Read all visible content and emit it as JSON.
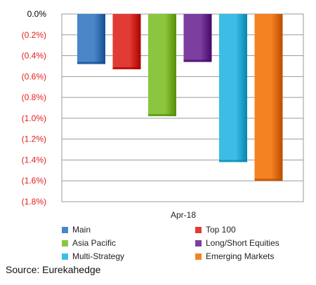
{
  "chart_data": {
    "type": "bar",
    "categories": [
      "Apr-18"
    ],
    "series": [
      {
        "name": "Main",
        "values": [
          -0.48
        ],
        "color": "#4a86c8"
      },
      {
        "name": "Top 100",
        "values": [
          -0.53
        ],
        "color": "#e23b35"
      },
      {
        "name": "Asia Pacific",
        "values": [
          -0.98
        ],
        "color": "#8cc63f"
      },
      {
        "name": "Long/Short Equities",
        "values": [
          -0.46
        ],
        "color": "#7c3fa0"
      },
      {
        "name": "Multi-Strategy",
        "values": [
          -1.42
        ],
        "color": "#3cbde6"
      },
      {
        "name": "Emerging Markets",
        "values": [
          -1.6
        ],
        "color": "#f58220"
      }
    ],
    "ylim": [
      -1.8,
      0.0
    ],
    "yticks": [
      0.0,
      -0.2,
      -0.4,
      -0.6,
      -0.8,
      -1.0,
      -1.2,
      -1.4,
      -1.6,
      -1.8
    ],
    "ytick_labels": [
      "0.0%",
      "(0.2%)",
      "(0.4%)",
      "(0.6%)",
      "(0.8%)",
      "(1.0%)",
      "(1.2%)",
      "(1.4%)",
      "(1.6%)",
      "(1.8%)"
    ],
    "ytick_colors": {
      "zero": "#000000",
      "negative": "#e0201c"
    },
    "xlabel": "Apr-18",
    "grid": true,
    "legend_position": "bottom"
  },
  "source_text": "Source: Eurekahedge"
}
